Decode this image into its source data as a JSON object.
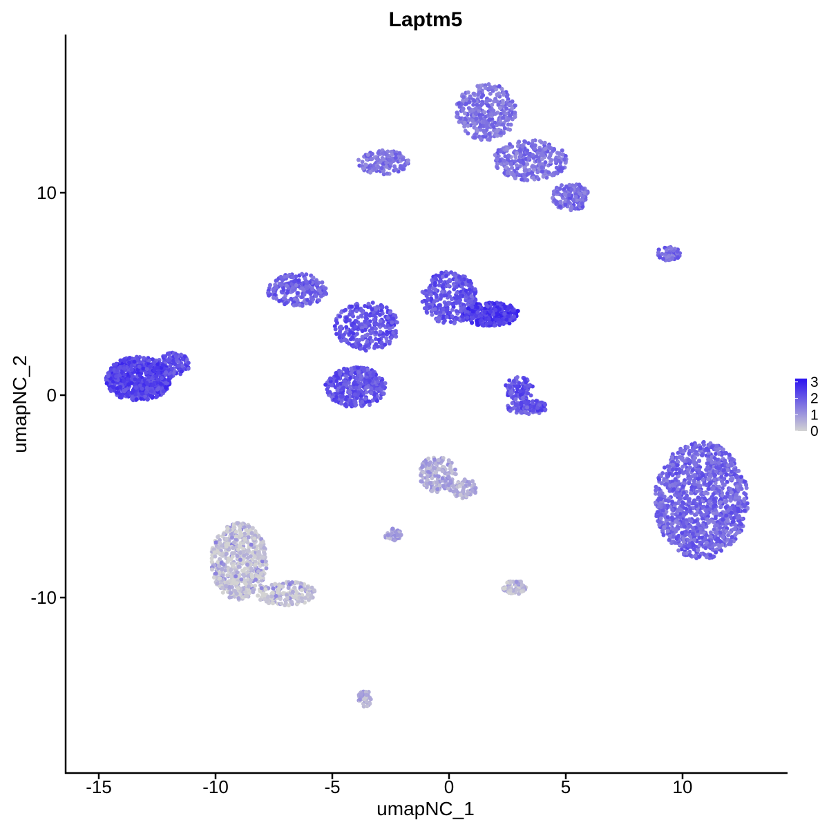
{
  "chart_data": {
    "type": "scatter",
    "title": "Laptm5",
    "xlabel": "umapNC_1",
    "ylabel": "umapNC_2",
    "xlim": [
      -16.5,
      14.5
    ],
    "ylim": [
      -18.5,
      18.0
    ],
    "x_ticks": [
      -15,
      -10,
      -5,
      0,
      5,
      10
    ],
    "x_tick_labels": [
      "-15",
      "-10",
      "-5",
      "0",
      "5",
      "10"
    ],
    "y_ticks": [
      10,
      0,
      -10
    ],
    "y_tick_labels": [
      "10",
      "0",
      "-10"
    ],
    "grid": false,
    "legend": {
      "position": "right",
      "type": "color-gradient",
      "labels": [
        "3",
        "2",
        "1",
        "0"
      ],
      "values": [
        3,
        2,
        1,
        0
      ],
      "low_color": "#d3d3d3",
      "high_color": "#2a12f0"
    },
    "clusters": [
      {
        "x": -13.3,
        "y": 0.8,
        "rx": 1.4,
        "ry": 1.1,
        "expr": 2.4,
        "n": 700
      },
      {
        "x": -11.8,
        "y": 1.5,
        "rx": 0.7,
        "ry": 0.6,
        "expr": 2.2,
        "n": 120
      },
      {
        "x": -6.5,
        "y": 5.2,
        "rx": 1.3,
        "ry": 0.8,
        "expr": 1.9,
        "n": 220
      },
      {
        "x": -4.0,
        "y": 0.4,
        "rx": 1.3,
        "ry": 1.0,
        "expr": 2.1,
        "n": 380
      },
      {
        "x": -3.5,
        "y": 3.4,
        "rx": 1.4,
        "ry": 1.2,
        "expr": 2.1,
        "n": 300
      },
      {
        "x": 0.0,
        "y": 4.8,
        "rx": 1.2,
        "ry": 1.3,
        "expr": 2.1,
        "n": 330
      },
      {
        "x": 1.8,
        "y": 4.0,
        "rx": 1.2,
        "ry": 0.6,
        "expr": 2.5,
        "n": 300
      },
      {
        "x": 3.0,
        "y": 0.3,
        "rx": 0.6,
        "ry": 0.6,
        "expr": 2.1,
        "n": 90
      },
      {
        "x": 3.4,
        "y": -0.6,
        "rx": 0.9,
        "ry": 0.35,
        "expr": 2.1,
        "n": 110
      },
      {
        "x": 1.6,
        "y": 14.0,
        "rx": 1.3,
        "ry": 1.4,
        "expr": 1.6,
        "n": 330
      },
      {
        "x": 3.5,
        "y": 11.6,
        "rx": 1.6,
        "ry": 1.0,
        "expr": 1.6,
        "n": 300
      },
      {
        "x": 5.2,
        "y": 9.8,
        "rx": 0.8,
        "ry": 0.7,
        "expr": 1.7,
        "n": 140
      },
      {
        "x": -2.8,
        "y": 11.5,
        "rx": 1.1,
        "ry": 0.6,
        "expr": 1.6,
        "n": 150
      },
      {
        "x": 9.4,
        "y": 7.0,
        "rx": 0.5,
        "ry": 0.35,
        "expr": 1.7,
        "n": 50
      },
      {
        "x": 10.8,
        "y": -5.2,
        "rx": 2.0,
        "ry": 2.9,
        "expr": 1.8,
        "n": 1200
      },
      {
        "x": -9.0,
        "y": -8.2,
        "rx": 1.2,
        "ry": 1.9,
        "expr": 0.2,
        "n": 600
      },
      {
        "x": -7.0,
        "y": -9.8,
        "rx": 1.3,
        "ry": 0.6,
        "expr": 0.2,
        "n": 180
      },
      {
        "x": -0.5,
        "y": -3.9,
        "rx": 0.8,
        "ry": 0.9,
        "expr": 0.7,
        "n": 160
      },
      {
        "x": 0.6,
        "y": -4.6,
        "rx": 0.6,
        "ry": 0.5,
        "expr": 0.6,
        "n": 70
      },
      {
        "x": 2.8,
        "y": -9.5,
        "rx": 0.5,
        "ry": 0.35,
        "expr": 0.4,
        "n": 80
      },
      {
        "x": -2.4,
        "y": -6.9,
        "rx": 0.35,
        "ry": 0.3,
        "expr": 0.8,
        "n": 40
      },
      {
        "x": -3.6,
        "y": -15.0,
        "rx": 0.3,
        "ry": 0.4,
        "expr": 0.6,
        "n": 40
      }
    ]
  }
}
